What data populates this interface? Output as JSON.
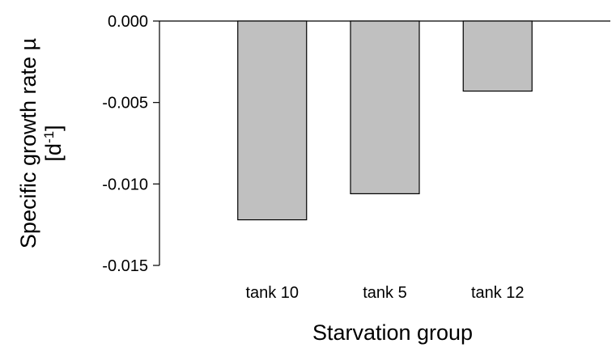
{
  "chart_data": {
    "type": "bar",
    "categories": [
      "tank 10",
      "tank 5",
      "tank 12"
    ],
    "values": [
      -0.0122,
      -0.0106,
      -0.0043
    ],
    "xlabel": "Starvation group",
    "ylabel": {
      "line1": "Specific growth rate µ",
      "line2_prefix": "[d",
      "line2_superscript": "-1",
      "line2_suffix": "]"
    },
    "ylim": [
      -0.015,
      0.0
    ],
    "yticks": [
      0.0,
      -0.005,
      -0.01,
      -0.015
    ],
    "ytick_labels": [
      "0.000",
      "-0.005",
      "-0.010",
      "-0.015"
    ],
    "bar_color": "#c0c0c0",
    "grid": false,
    "legend": "none"
  }
}
